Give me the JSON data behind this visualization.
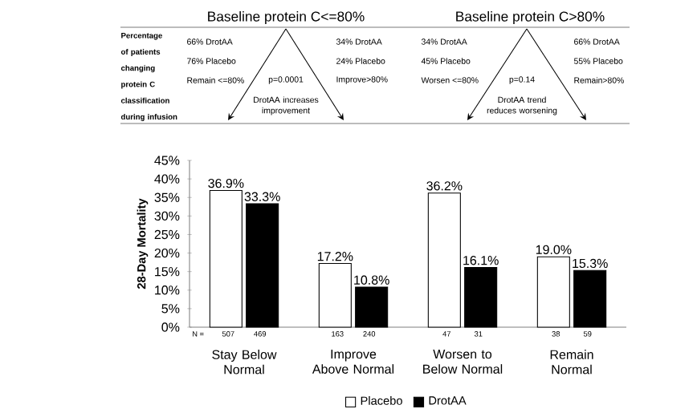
{
  "chart_data": {
    "type": "bar",
    "ylabel": "28-Day Mortality",
    "categories": [
      "Stay Below Normal",
      "Improve Above Normal",
      "Worsen to Below Normal",
      "Remain Normal"
    ],
    "series": [
      {
        "name": "Placebo",
        "color": "#ffffff",
        "values": [
          36.9,
          17.2,
          36.2,
          19.0
        ],
        "value_labels": [
          "36.9%",
          "17.2%",
          "36.2%",
          "19.0%"
        ]
      },
      {
        "name": "DrotAA",
        "color": "#000000",
        "values": [
          33.3,
          10.8,
          16.1,
          15.3
        ],
        "value_labels": [
          "33.3%",
          "10.8%",
          "16.1%",
          "15.3%"
        ]
      }
    ],
    "ylim": [
      0,
      45
    ],
    "yticks": [
      {
        "value": 0,
        "label": "0%"
      },
      {
        "value": 5,
        "label": "5%"
      },
      {
        "value": 10,
        "label": "10%"
      },
      {
        "value": 15,
        "label": "15%"
      },
      {
        "value": 20,
        "label": "20%"
      },
      {
        "value": 25,
        "label": "25%"
      },
      {
        "value": 30,
        "label": "30%"
      },
      {
        "value": 35,
        "label": "35%"
      },
      {
        "value": 40,
        "label": "40%"
      },
      {
        "value": 45,
        "label": "45%"
      }
    ],
    "legend": "bottom",
    "annotations": [
      "Baseline protein C<=80%",
      "Baseline protein C>80%",
      "Percentage of patients changing protein C classification during infusion",
      "66% DrotAA",
      "76% Placebo",
      "Remain <=80%",
      "p=0.0001",
      "DrotAA increases improvement",
      "34% DrotAA",
      "24% Placebo",
      "Improve>80%",
      "34% DrotAA",
      "45% Placebo",
      "Worsen <=80%",
      "p=0.14",
      "DrotAA trend reduces worsening",
      "66% DrotAA",
      "55% Placebo",
      "Remain>80%",
      "N =",
      "507",
      "469",
      "163",
      "240",
      "47",
      "31",
      "38",
      "59"
    ]
  }
}
